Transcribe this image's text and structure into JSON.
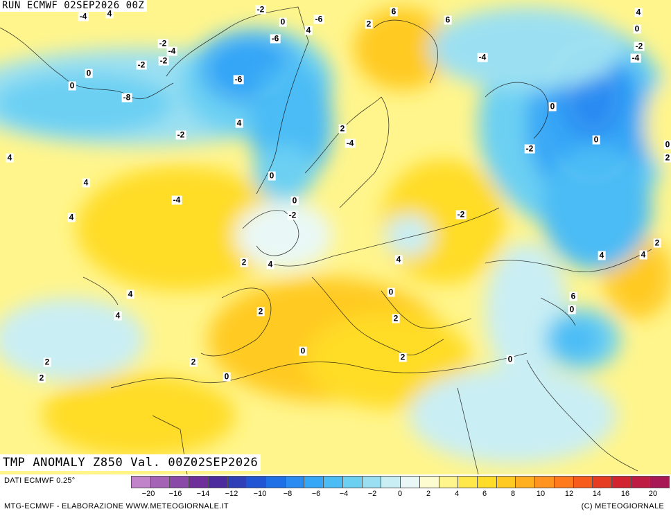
{
  "header": {
    "run": "RUN ECMWF 02SEP2026 00Z",
    "title": "TMP ANOMALY Z850 Val. 00Z02SEP2026"
  },
  "footer": {
    "source": "DATI ECMWF 0.25°",
    "credit": "MTG-ECMWF - ELABORAZIONE WWW.METEOGIORNALE.IT",
    "copyright": "(C) METEOGIORNALE"
  },
  "legend": {
    "colors": [
      "#c183c9",
      "#a463b5",
      "#8a4aa8",
      "#6e2f9a",
      "#4b2b9e",
      "#2f3fb8",
      "#2155d4",
      "#1f6fe6",
      "#2a8cf2",
      "#36a6f6",
      "#4cbcf5",
      "#6cd0f3",
      "#9be0f2",
      "#c9eef4",
      "#e9f8f6",
      "#fdfbd0",
      "#fff58c",
      "#ffe94a",
      "#ffdc28",
      "#ffca22",
      "#ffb021",
      "#ff9520",
      "#ff7a1c",
      "#f75c1c",
      "#e63c22",
      "#d22430",
      "#be1c42",
      "#a81854"
    ],
    "ticks": [
      "−20",
      "−16",
      "−14",
      "−12",
      "−10",
      "−8",
      "−6",
      "−4",
      "−2",
      "0",
      "2",
      "4",
      "6",
      "8",
      "10",
      "12",
      "14",
      "16",
      "20"
    ]
  },
  "map_labels": [
    "-2",
    "0",
    "-4",
    "6",
    "4",
    "-6",
    "4",
    "2",
    "6",
    "4",
    "0",
    "-2",
    "-4",
    "-4",
    "-6",
    "-2",
    "-4",
    "-2",
    "-2",
    "0",
    "0",
    "-6",
    "-8",
    "0",
    "0",
    "-2",
    "4",
    "2",
    "-4",
    "-2",
    "0",
    "4",
    "2",
    "0",
    "4",
    "-4",
    "0",
    "4",
    "-2",
    "-2",
    "2",
    "4",
    "4",
    "2",
    "4",
    "4",
    "6",
    "4",
    "0",
    "0",
    "4",
    "2",
    "2",
    "0",
    "2",
    "2",
    "2",
    "0",
    "2",
    "0"
  ]
}
